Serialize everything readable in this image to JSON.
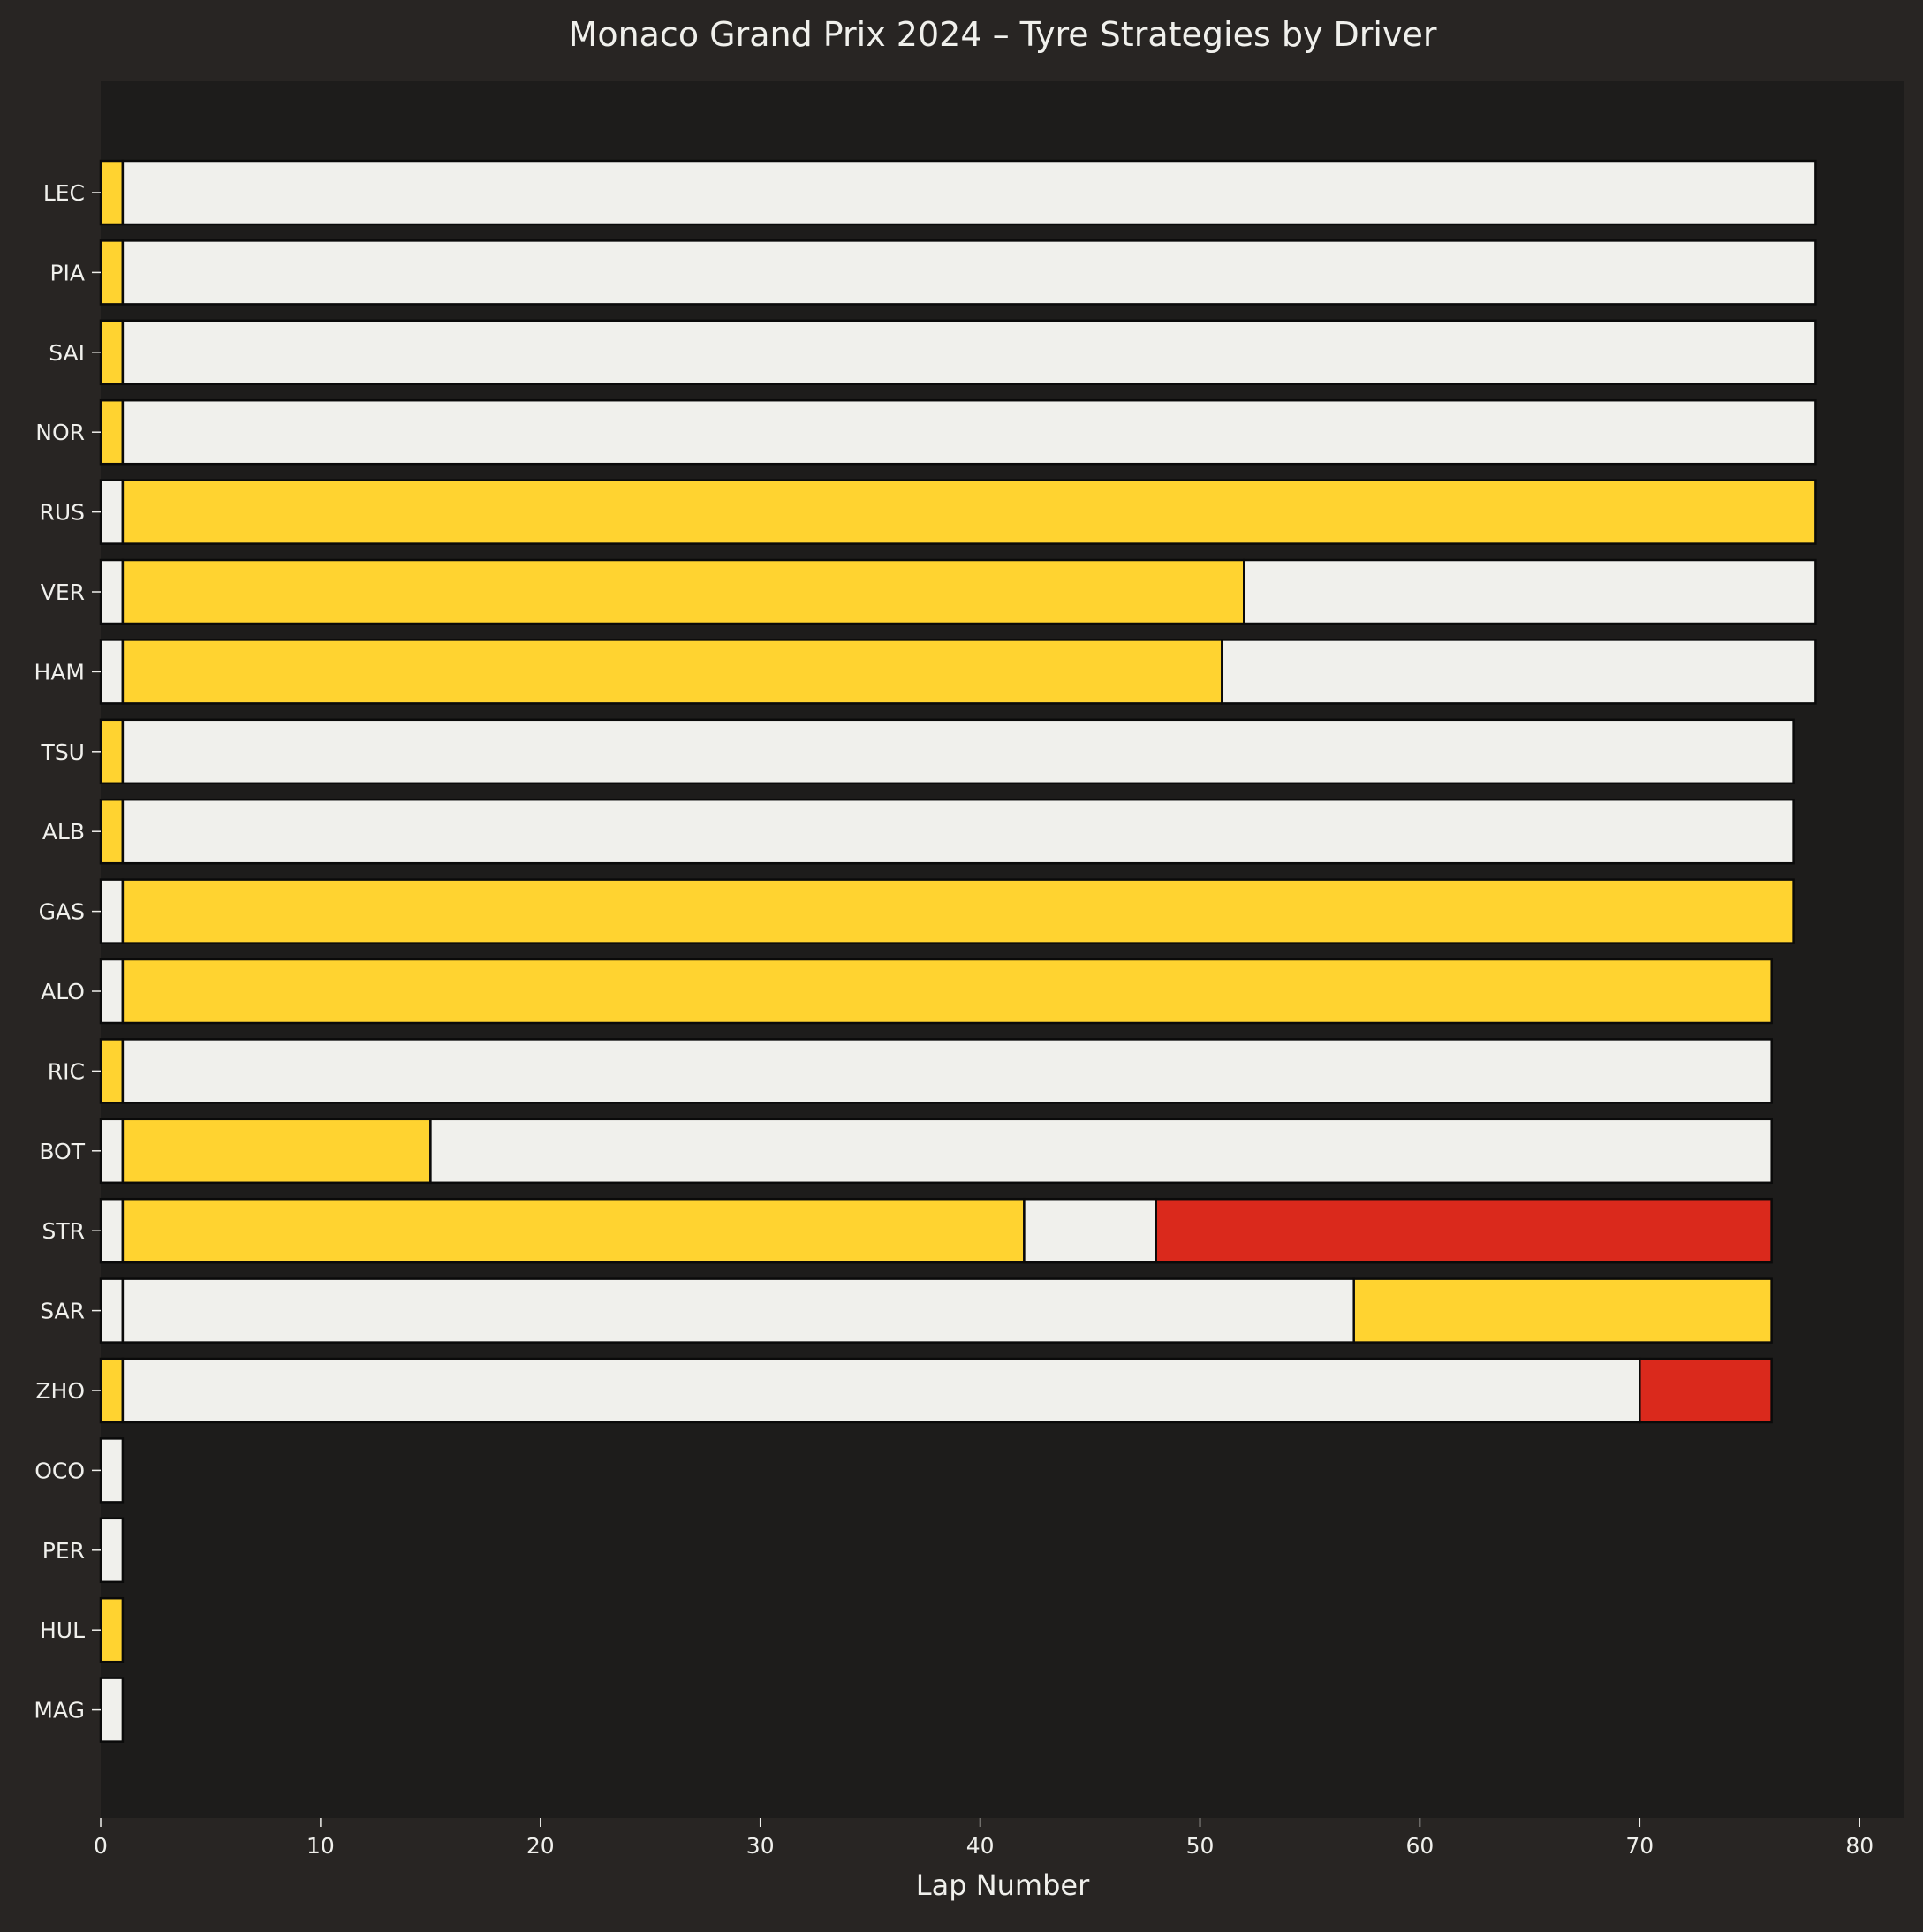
{
  "chart_data": {
    "type": "bar",
    "orientation": "horizontal",
    "stacked": true,
    "title": "Monaco Grand Prix 2024 – Tyre Strategies by Driver",
    "xlabel": "Lap Number",
    "ylabel": "",
    "xlim": [
      0,
      82
    ],
    "xticks": [
      0,
      10,
      20,
      30,
      40,
      50,
      60,
      70,
      80
    ],
    "grid": false,
    "legend": "none",
    "colors": {
      "background": "#282523",
      "plot_background": "#1d1c1b",
      "text": "#f0f0ec",
      "bar_edge": "#0a0a0a",
      "medium": "#ffd330",
      "hard": "#f0f0ec",
      "soft": "#da291c"
    },
    "drivers": [
      {
        "name": "LEC",
        "stints": [
          {
            "compound": "medium",
            "start": 0,
            "end": 1
          },
          {
            "compound": "hard",
            "start": 1,
            "end": 78
          }
        ]
      },
      {
        "name": "PIA",
        "stints": [
          {
            "compound": "medium",
            "start": 0,
            "end": 1
          },
          {
            "compound": "hard",
            "start": 1,
            "end": 78
          }
        ]
      },
      {
        "name": "SAI",
        "stints": [
          {
            "compound": "medium",
            "start": 0,
            "end": 1
          },
          {
            "compound": "hard",
            "start": 1,
            "end": 78
          }
        ]
      },
      {
        "name": "NOR",
        "stints": [
          {
            "compound": "medium",
            "start": 0,
            "end": 1
          },
          {
            "compound": "hard",
            "start": 1,
            "end": 78
          }
        ]
      },
      {
        "name": "RUS",
        "stints": [
          {
            "compound": "hard",
            "start": 0,
            "end": 1
          },
          {
            "compound": "medium",
            "start": 1,
            "end": 78
          }
        ]
      },
      {
        "name": "VER",
        "stints": [
          {
            "compound": "hard",
            "start": 0,
            "end": 1
          },
          {
            "compound": "medium",
            "start": 1,
            "end": 52
          },
          {
            "compound": "hard",
            "start": 52,
            "end": 78
          }
        ]
      },
      {
        "name": "HAM",
        "stints": [
          {
            "compound": "hard",
            "start": 0,
            "end": 1
          },
          {
            "compound": "medium",
            "start": 1,
            "end": 51
          },
          {
            "compound": "hard",
            "start": 51,
            "end": 78
          }
        ]
      },
      {
        "name": "TSU",
        "stints": [
          {
            "compound": "medium",
            "start": 0,
            "end": 1
          },
          {
            "compound": "hard",
            "start": 1,
            "end": 77
          }
        ]
      },
      {
        "name": "ALB",
        "stints": [
          {
            "compound": "medium",
            "start": 0,
            "end": 1
          },
          {
            "compound": "hard",
            "start": 1,
            "end": 77
          }
        ]
      },
      {
        "name": "GAS",
        "stints": [
          {
            "compound": "hard",
            "start": 0,
            "end": 1
          },
          {
            "compound": "medium",
            "start": 1,
            "end": 77
          }
        ]
      },
      {
        "name": "ALO",
        "stints": [
          {
            "compound": "hard",
            "start": 0,
            "end": 1
          },
          {
            "compound": "medium",
            "start": 1,
            "end": 76
          }
        ]
      },
      {
        "name": "RIC",
        "stints": [
          {
            "compound": "medium",
            "start": 0,
            "end": 1
          },
          {
            "compound": "hard",
            "start": 1,
            "end": 76
          }
        ]
      },
      {
        "name": "BOT",
        "stints": [
          {
            "compound": "hard",
            "start": 0,
            "end": 1
          },
          {
            "compound": "medium",
            "start": 1,
            "end": 15
          },
          {
            "compound": "hard",
            "start": 15,
            "end": 76
          }
        ]
      },
      {
        "name": "STR",
        "stints": [
          {
            "compound": "hard",
            "start": 0,
            "end": 1
          },
          {
            "compound": "medium",
            "start": 1,
            "end": 42
          },
          {
            "compound": "hard",
            "start": 42,
            "end": 48
          },
          {
            "compound": "soft",
            "start": 48,
            "end": 76
          }
        ]
      },
      {
        "name": "SAR",
        "stints": [
          {
            "compound": "hard",
            "start": 0,
            "end": 1
          },
          {
            "compound": "hard",
            "start": 1,
            "end": 57
          },
          {
            "compound": "medium",
            "start": 57,
            "end": 76
          }
        ]
      },
      {
        "name": "ZHO",
        "stints": [
          {
            "compound": "medium",
            "start": 0,
            "end": 1
          },
          {
            "compound": "hard",
            "start": 1,
            "end": 70
          },
          {
            "compound": "soft",
            "start": 70,
            "end": 76
          }
        ]
      },
      {
        "name": "OCO",
        "stints": [
          {
            "compound": "hard",
            "start": 0,
            "end": 1
          }
        ]
      },
      {
        "name": "PER",
        "stints": [
          {
            "compound": "hard",
            "start": 0,
            "end": 1
          }
        ]
      },
      {
        "name": "HUL",
        "stints": [
          {
            "compound": "medium",
            "start": 0,
            "end": 1
          }
        ]
      },
      {
        "name": "MAG",
        "stints": [
          {
            "compound": "hard",
            "start": 0,
            "end": 1
          }
        ]
      }
    ]
  }
}
